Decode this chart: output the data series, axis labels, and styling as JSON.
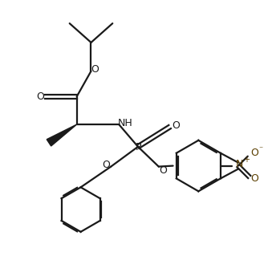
{
  "background_color": "#ffffff",
  "line_color": "#1a1a1a",
  "bond_width": 1.6,
  "fig_width": 3.39,
  "fig_height": 3.19,
  "dpi": 100,
  "xlim": [
    0,
    339
  ],
  "ylim": [
    0,
    319
  ]
}
